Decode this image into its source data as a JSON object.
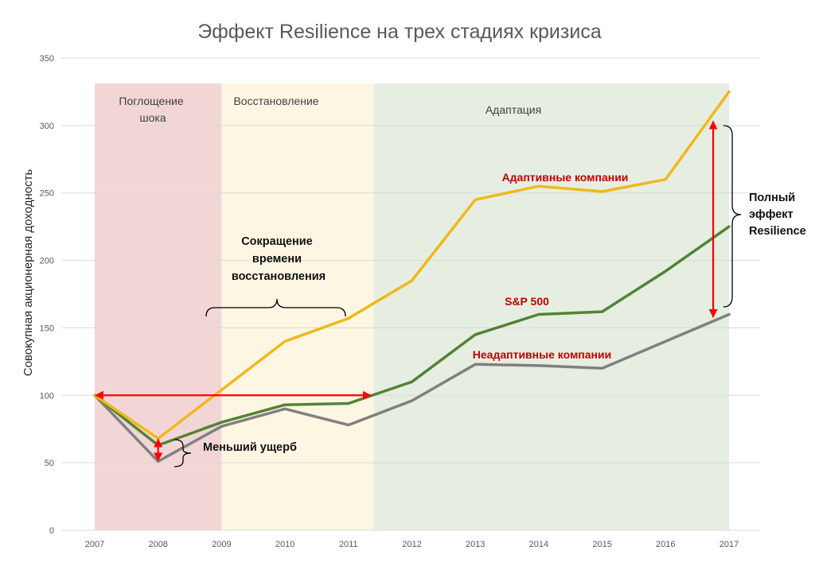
{
  "chart_data": {
    "type": "line",
    "title": "Эффект Resilience на трех стадиях кризиса",
    "xlabel": "",
    "ylabel": "Совокупная акционерная доходность",
    "ylim": [
      0,
      350
    ],
    "yticks": [
      0,
      50,
      100,
      150,
      200,
      250,
      300,
      350
    ],
    "categories": [
      "2007",
      "2008",
      "2009",
      "2010",
      "2011",
      "2012",
      "2013",
      "2014",
      "2015",
      "2016",
      "2017"
    ],
    "grid": true,
    "series": [
      {
        "name": "Адаптивные компании",
        "color": "#f0b81b",
        "x": [
          2007,
          2008,
          2009,
          2010,
          2011,
          2012,
          2013,
          2014,
          2015,
          2016,
          2017
        ],
        "values": [
          100,
          68,
          104,
          140,
          157,
          185,
          245,
          255,
          251,
          260,
          325
        ]
      },
      {
        "name": "S&P 500",
        "color": "#548235",
        "x": [
          2007,
          2008,
          2009,
          2010,
          2011,
          2012,
          2013,
          2014,
          2015,
          2016,
          2017
        ],
        "values": [
          100,
          63,
          80,
          93,
          94,
          110,
          145,
          160,
          162,
          192,
          225
        ]
      },
      {
        "name": "Неадаптивные компании",
        "color": "#808080",
        "x": [
          2007,
          2008,
          2009,
          2010,
          2011,
          2012,
          2013,
          2014,
          2015,
          2016,
          2017
        ],
        "values": [
          100,
          51,
          77,
          90,
          78,
          96,
          123,
          122,
          120,
          140,
          160
        ]
      }
    ],
    "phases": [
      {
        "label": "Поглощение шока",
        "from": 2007,
        "to": 2009,
        "color": "#f2d6d6"
      },
      {
        "label": "Восстановление",
        "from": 2009,
        "to": 2011.4,
        "color": "#fdf6e3"
      },
      {
        "label": "Адаптация",
        "from": 2011.4,
        "to": 2017,
        "color": "#e6eee2"
      }
    ],
    "annotations": {
      "recovery_time": "Сокращение времени восстановления",
      "less_damage": "Меньший ущерб",
      "full_effect": "Полный эффект Resilience"
    }
  },
  "colors": {
    "arrow": "#ff0000",
    "grid": "#d9d9d9",
    "series_label": "#c00000"
  }
}
